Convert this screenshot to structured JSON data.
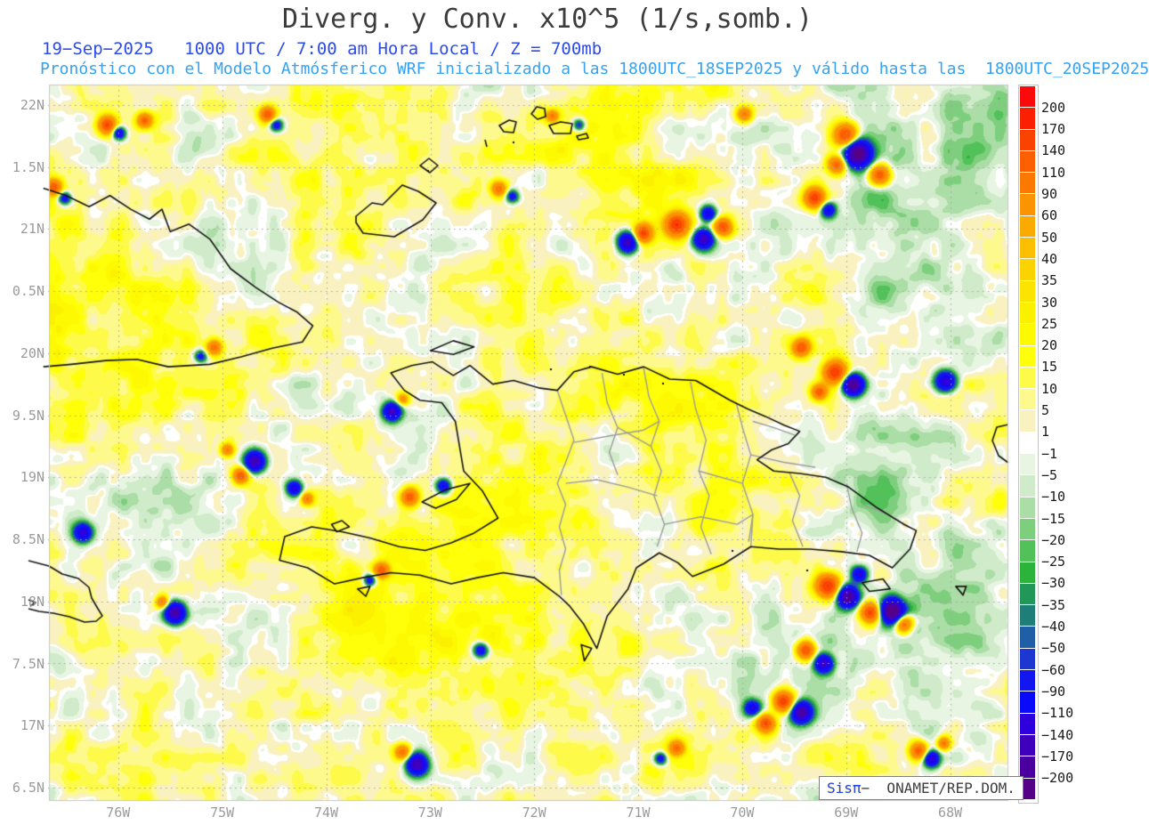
{
  "header": {
    "title": "Diverg. y Conv. x10^5 (1/s,somb.)",
    "line2": "19−Sep−2025   1000 UTC / 7:00 am Hora Local / Z = 700mb",
    "line3": "Pronóstico con el Modelo Atmósferico WRF inicializado a las 1800UTC_18SEP2025 y válido hasta las  1800UTC_20SEP2025"
  },
  "map": {
    "lat_labels": [
      "22N",
      "1.5N",
      "21N",
      "0.5N",
      "20N",
      "9.5N",
      "19N",
      "8.5N",
      "18N",
      "7.5N",
      "17N",
      "6.5N"
    ],
    "lon_labels": [
      "76W",
      "75W",
      "74W",
      "73W",
      "72W",
      "71W",
      "70W",
      "69W",
      "68W"
    ]
  },
  "colorbar": {
    "labels": [
      "200",
      "170",
      "140",
      "110",
      "90",
      "60",
      "50",
      "40",
      "35",
      "30",
      "25",
      "20",
      "15",
      "10",
      "5",
      "1",
      "−1",
      "−5",
      "−10",
      "−15",
      "−20",
      "−25",
      "−30",
      "−35",
      "−40",
      "−50",
      "−60",
      "−90",
      "−110",
      "−140",
      "−170",
      "−200"
    ],
    "colors": [
      "#fa0a0a",
      "#fb2000",
      "#fb4300",
      "#fb5f00",
      "#fb7900",
      "#fb9400",
      "#fbaa00",
      "#fbbf00",
      "#fbd300",
      "#fbe400",
      "#fbf000",
      "#fdf900",
      "#ffff0a",
      "#fdfa49",
      "#fdf98c",
      "#f9f2c0",
      "#ffffff",
      "#e7f5e2",
      "#cfebc9",
      "#abdda6",
      "#7ecf7d",
      "#52c159",
      "#2cb33c",
      "#219858",
      "#1f7f78",
      "#205fa5",
      "#1e36d2",
      "#1317ef",
      "#0a0afa",
      "#2e00dc",
      "#3f00bd",
      "#49009e",
      "#550087"
    ]
  },
  "watermark": {
    "brand": "Sisπ",
    "org": "−  ONAMET/REP.DOM."
  },
  "chart_data": {
    "type": "heatmap",
    "title": "Diverg. y Conv. x10^5 (1/s,somb.)",
    "units": "1/s (x10^5), sombreado",
    "level": "700mb",
    "valid_time": "19−Sep−2025 1000 UTC / 7:00 am Hora Local",
    "model_info": "WRF inicializado 1800UTC_18SEP2025, válido hasta 1800UTC_20SEP2025",
    "lon_ticks": [
      "76W",
      "75W",
      "74W",
      "73W",
      "72W",
      "71W",
      "70W",
      "69W",
      "68W"
    ],
    "lat_ticks": [
      "22N",
      "1.5N",
      "21N",
      "0.5N",
      "20N",
      "9.5N",
      "19N",
      "8.5N",
      "18N",
      "7.5N",
      "17N",
      "6.5N"
    ],
    "shading_levels": [
      200,
      170,
      140,
      110,
      90,
      60,
      50,
      40,
      35,
      30,
      25,
      20,
      15,
      10,
      5,
      1,
      -1,
      -5,
      -10,
      -15,
      -20,
      -25,
      -30,
      -35,
      -40,
      -50,
      -60,
      -90,
      -110,
      -140,
      -170,
      -200
    ],
    "legend_position": "right"
  }
}
